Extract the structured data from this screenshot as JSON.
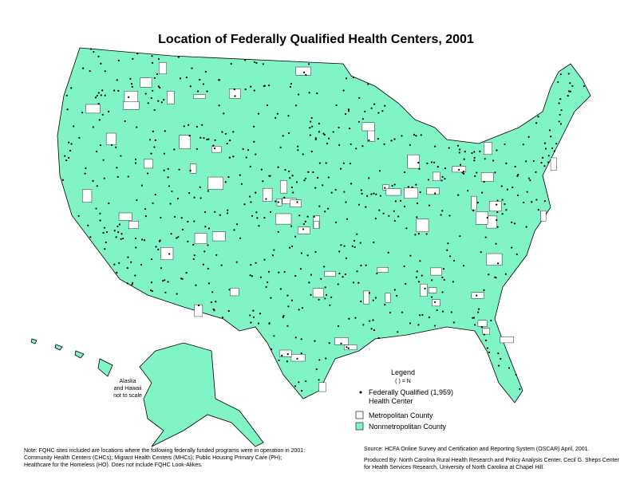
{
  "title": "Location of Federally Qualified Health Centers, 2001",
  "scale_note": [
    "Alaska",
    "and Hawaii",
    "not to scale"
  ],
  "legend": {
    "title": "Legend",
    "subtitle": "( ) = N",
    "items": [
      {
        "label": [
          "Federally Qualified (1,959)",
          "Health Center"
        ]
      },
      {
        "label": [
          "Metropolitan County"
        ]
      },
      {
        "label": [
          "Nonmetropolitan County"
        ]
      }
    ]
  },
  "note": [
    "Note: FQHC sites included are locations where the following federally funded programs were in operation in 2001:",
    "Community Health Centers (CHCs); Migrant Health Centers (MHCs); Public Housing Primary Care (PH);",
    "Healthcare for the Homeless (HO). Does not include FQHC Look-Alikes."
  ],
  "source": "Source: HCFA Online Survey and Certification and Reporting System (OSCAR) April, 2001.",
  "produced": [
    "Produced By: North Carolina Rural Health Research and Policy Analysis Center, Cecil G. Sheps Center",
    "for Health Services Research, University of North Carolina at Chapel Hill."
  ]
}
